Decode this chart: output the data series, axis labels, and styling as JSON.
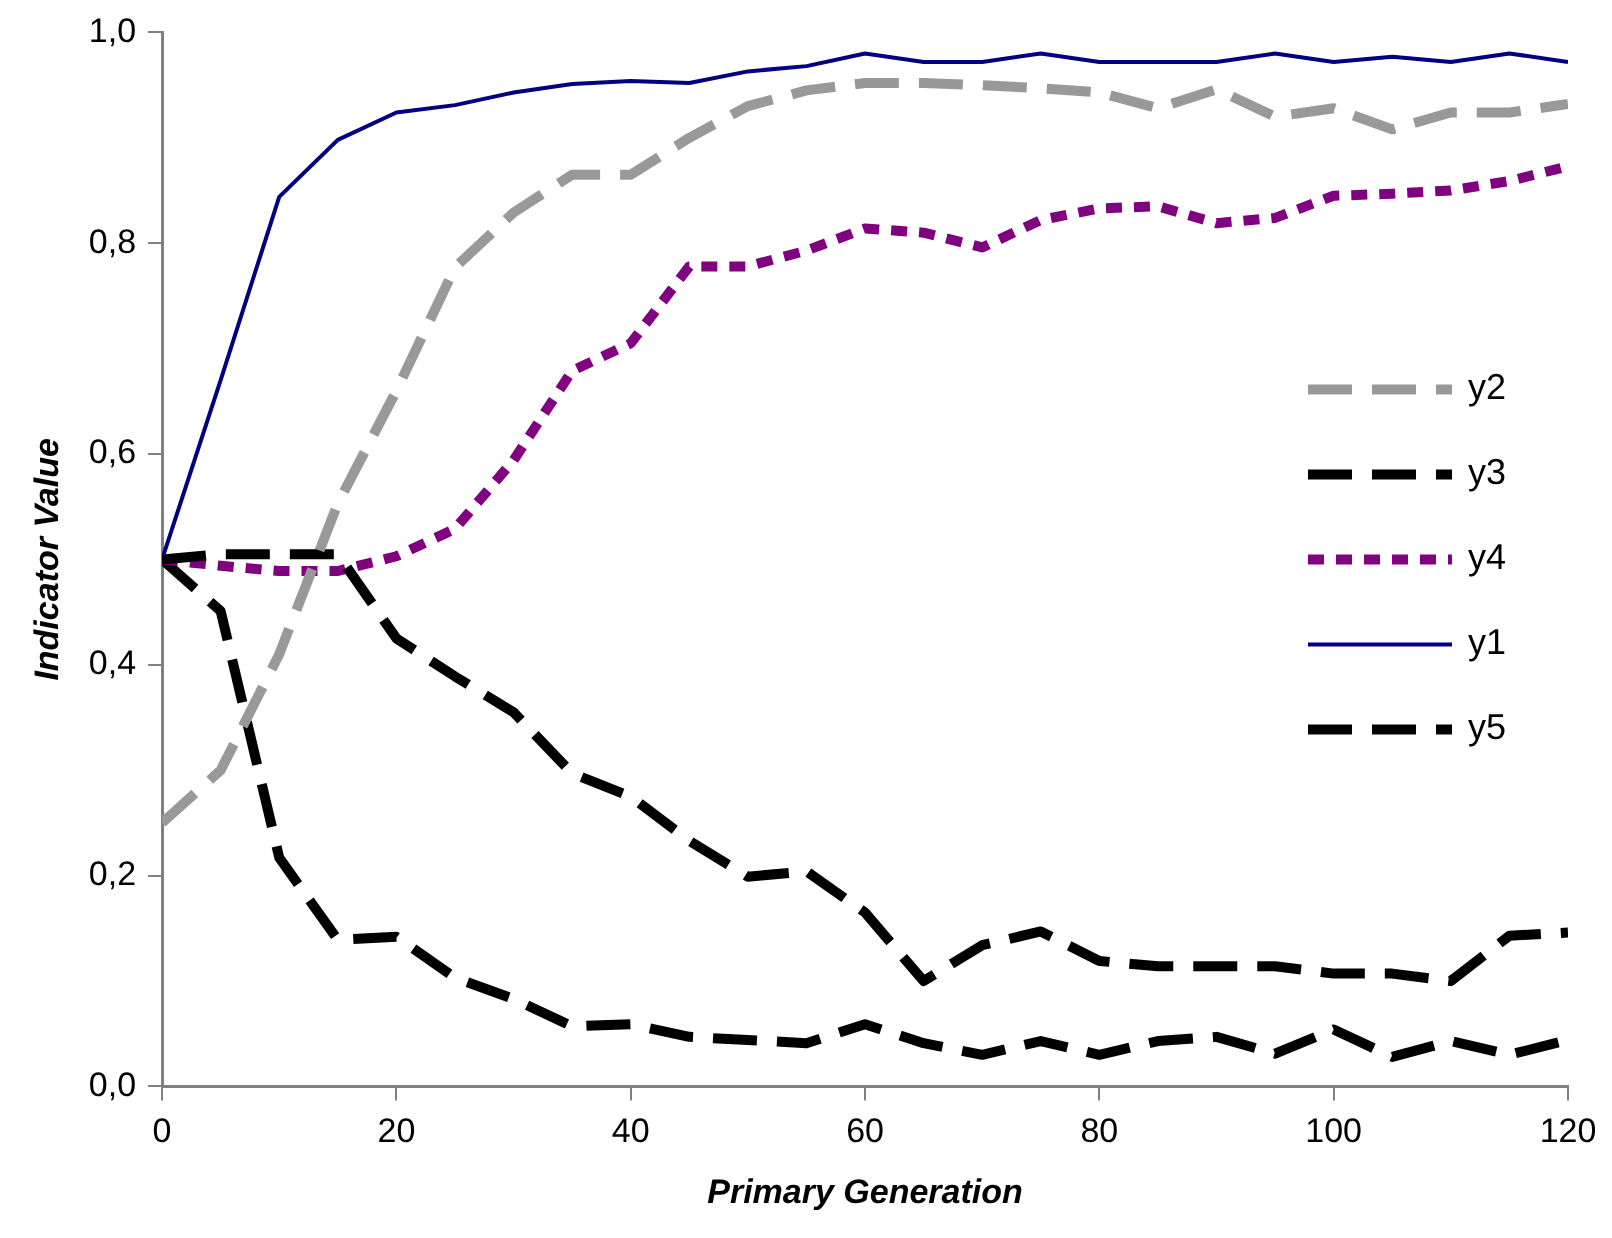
{
  "chart_data": {
    "type": "line",
    "xlabel": "Primary Generation",
    "ylabel": "Indicator Value",
    "x": [
      0,
      5,
      10,
      15,
      20,
      25,
      30,
      35,
      40,
      45,
      50,
      55,
      60,
      65,
      70,
      75,
      80,
      85,
      90,
      95,
      100,
      105,
      110,
      115,
      120
    ],
    "xlim": [
      0,
      120
    ],
    "xticks": [
      0,
      20,
      40,
      60,
      80,
      100,
      120
    ],
    "ylim": [
      0,
      1
    ],
    "yticks": [
      {
        "value": 0,
        "label": "0,0"
      },
      {
        "value": 0.2,
        "label": "0,2"
      },
      {
        "value": 0.4,
        "label": "0,4"
      },
      {
        "value": 0.6,
        "label": "0,6"
      },
      {
        "value": 0.8,
        "label": "0,8"
      },
      {
        "value": 1,
        "label": "1,0"
      }
    ],
    "grid": false,
    "legend": "right",
    "marker": "none",
    "series": [
      {
        "name": "y2",
        "color": "#999999",
        "line_style": "dashed",
        "values": [
          0.25,
          0.3,
          0.41,
          0.553,
          0.66,
          0.777,
          0.829,
          0.865,
          0.865,
          0.9,
          0.93,
          0.945,
          0.952,
          0.952,
          0.95,
          0.947,
          0.943,
          0.928,
          0.946,
          0.92,
          0.928,
          0.908,
          0.924,
          0.924,
          0.932
        ]
      },
      {
        "name": "y3",
        "color": "#000000",
        "line_style": "dashed",
        "values": [
          0.5,
          0.505,
          0.505,
          0.505,
          0.425,
          0.389,
          0.355,
          0.297,
          0.275,
          0.233,
          0.199,
          0.204,
          0.165,
          0.1,
          0.134,
          0.147,
          0.119,
          0.114,
          0.114,
          0.114,
          0.107,
          0.107,
          0.1,
          0.143,
          0.146
        ]
      },
      {
        "name": "y4",
        "color": "#800080",
        "line_style": "dotted",
        "values": [
          0.5,
          0.494,
          0.489,
          0.489,
          0.503,
          0.529,
          0.594,
          0.679,
          0.705,
          0.778,
          0.778,
          0.793,
          0.814,
          0.81,
          0.796,
          0.822,
          0.833,
          0.835,
          0.819,
          0.824,
          0.845,
          0.847,
          0.85,
          0.859,
          0.873
        ]
      },
      {
        "name": "y1",
        "color": "#000080",
        "line_style": "solid",
        "values": [
          0.5,
          0.67,
          0.844,
          0.898,
          0.924,
          0.931,
          0.943,
          0.951,
          0.954,
          0.952,
          0.963,
          0.968,
          0.98,
          0.972,
          0.972,
          0.98,
          0.972,
          0.972,
          0.972,
          0.98,
          0.972,
          0.977,
          0.972,
          0.98,
          0.972
        ]
      },
      {
        "name": "y5",
        "color": "#000000",
        "line_style": "dashed",
        "values": [
          0.5,
          0.451,
          0.217,
          0.139,
          0.142,
          0.103,
          0.083,
          0.057,
          0.059,
          0.047,
          0.044,
          0.041,
          0.059,
          0.041,
          0.03,
          0.043,
          0.03,
          0.043,
          0.047,
          0.031,
          0.054,
          0.028,
          0.043,
          0.03,
          0.044
        ]
      }
    ]
  }
}
